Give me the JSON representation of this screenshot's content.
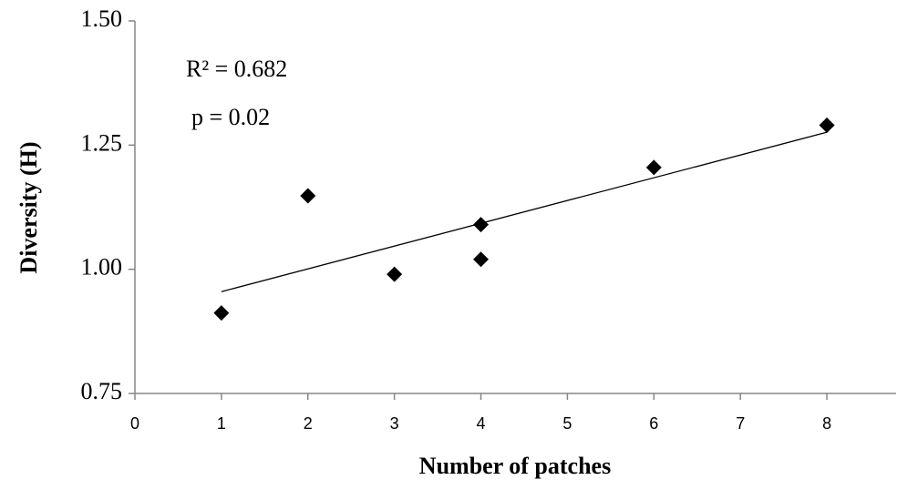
{
  "chart_data": {
    "type": "scatter",
    "y_label": "Diversity (H)",
    "x_label": "Number of patches",
    "annotations": [
      "R² = 0.682",
      "p = 0.02"
    ],
    "series": [
      {
        "color": "#000000",
        "x": [
          1,
          2,
          3,
          4,
          4,
          6,
          8
        ],
        "values": [
          0.912,
          1.148,
          0.99,
          1.09,
          1.02,
          1.205,
          1.29
        ]
      }
    ],
    "trendline": {
      "color": "#000000",
      "x": [
        1,
        8
      ],
      "values": [
        0.955,
        1.276
      ]
    },
    "xlim": [
      0,
      8.8
    ],
    "xticks": [
      0,
      1,
      2,
      3,
      4,
      5,
      6,
      7,
      8
    ],
    "ylim": [
      0.75,
      1.5
    ],
    "yticks": [
      0.75,
      {
        "value": 1.0,
        "label": "1.00"
      },
      1.25,
      {
        "value": 1.5,
        "label": "1.50"
      }
    ],
    "grid": false
  }
}
